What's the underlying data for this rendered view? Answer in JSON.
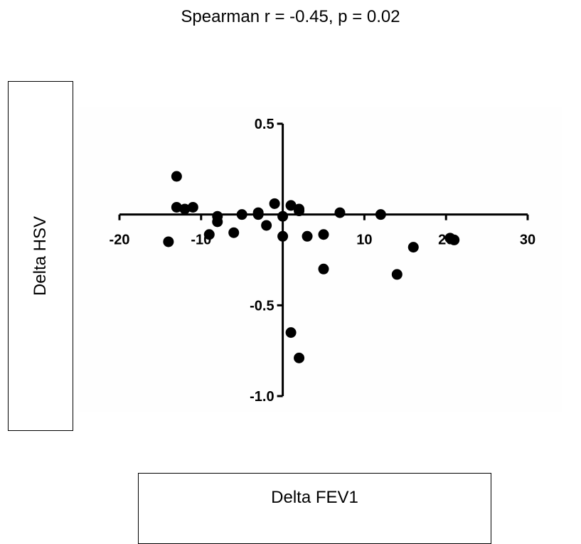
{
  "chart_data": {
    "type": "scatter",
    "title": "Spearman r = -0.45, p = 0.02",
    "xlabel": "Delta FEV1",
    "ylabel": "Delta HSV",
    "xlim": [
      -20,
      30
    ],
    "ylim": [
      -1.0,
      0.5
    ],
    "xticks": [
      -20,
      -10,
      10,
      20,
      30
    ],
    "yticks": [
      0.5,
      -0.5,
      -1.0
    ],
    "xtick_labels": [
      "-20",
      "-10",
      "10",
      "20",
      "30"
    ],
    "ytick_labels": [
      "0.5",
      "-0.5",
      "-1.0"
    ],
    "grid": false,
    "points": [
      {
        "x": -14,
        "y": -0.15
      },
      {
        "x": -13,
        "y": 0.21
      },
      {
        "x": -13,
        "y": 0.04
      },
      {
        "x": -12,
        "y": 0.03
      },
      {
        "x": -11,
        "y": 0.04
      },
      {
        "x": -9,
        "y": -0.11
      },
      {
        "x": -8,
        "y": -0.04
      },
      {
        "x": -8,
        "y": -0.01
      },
      {
        "x": -6,
        "y": -0.1
      },
      {
        "x": -5,
        "y": 0.0
      },
      {
        "x": -3,
        "y": 0.0
      },
      {
        "x": -3,
        "y": 0.01
      },
      {
        "x": -2,
        "y": -0.06
      },
      {
        "x": -1,
        "y": 0.06
      },
      {
        "x": 0,
        "y": -0.01
      },
      {
        "x": 0,
        "y": -0.12
      },
      {
        "x": 1,
        "y": 0.05
      },
      {
        "x": 2,
        "y": 0.03
      },
      {
        "x": 2,
        "y": 0.02
      },
      {
        "x": 3,
        "y": -0.12
      },
      {
        "x": 5,
        "y": -0.11
      },
      {
        "x": 5,
        "y": -0.3
      },
      {
        "x": 7,
        "y": 0.01
      },
      {
        "x": 12,
        "y": 0.0
      },
      {
        "x": 14,
        "y": -0.33
      },
      {
        "x": 16,
        "y": -0.18
      },
      {
        "x": 20.5,
        "y": -0.13
      },
      {
        "x": 21,
        "y": -0.14
      },
      {
        "x": 1,
        "y": -0.65
      },
      {
        "x": 2,
        "y": -0.79
      }
    ]
  }
}
